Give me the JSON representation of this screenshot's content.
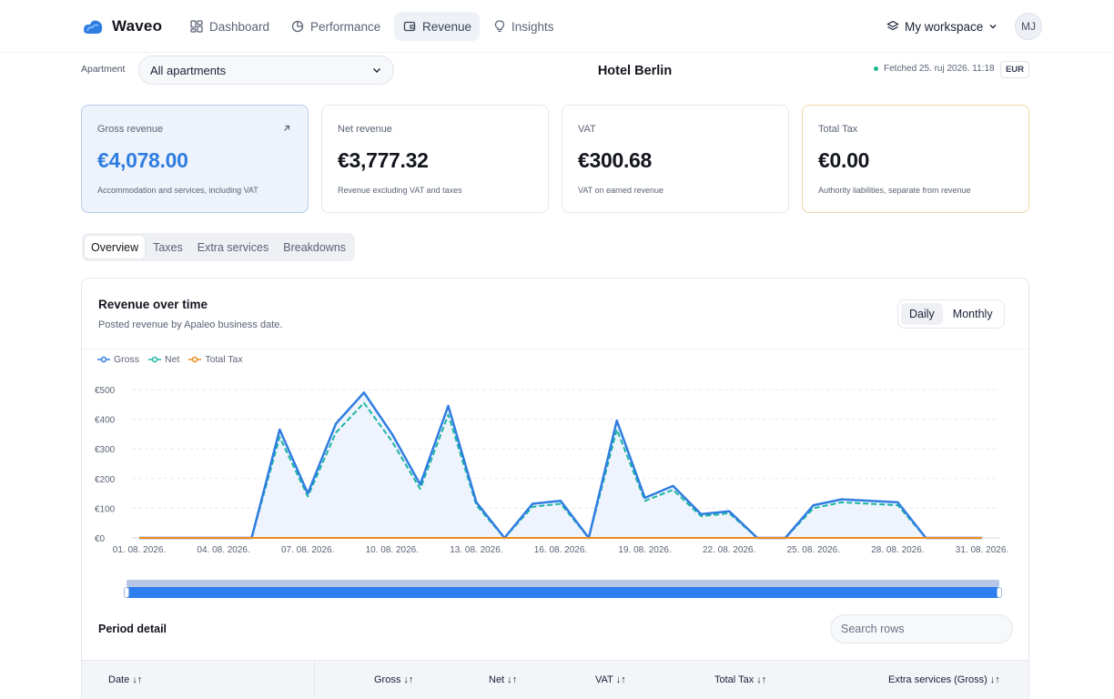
{
  "app": {
    "name": "Waveo"
  },
  "nav": {
    "items": [
      {
        "label": "Dashboard",
        "icon": "dashboard-icon"
      },
      {
        "label": "Performance",
        "icon": "pie-chart-icon"
      },
      {
        "label": "Revenue",
        "icon": "wallet-icon",
        "active": true
      },
      {
        "label": "Insights",
        "icon": "lightbulb-icon"
      }
    ],
    "workspace": "My workspace",
    "avatar_initials": "MJ"
  },
  "filters": {
    "apartment_label": "Apartment",
    "apartment_value": "All apartments",
    "hotel_title": "Hotel Berlin",
    "fetched": "Fetched 25. ruj 2026. 11:18",
    "currency": "EUR"
  },
  "kpis": [
    {
      "label": "Gross revenue",
      "value": "€4,078.00",
      "sub": "Accommodation and services, including VAT"
    },
    {
      "label": "Net revenue",
      "value": "€3,777.32",
      "sub": "Revenue excluding VAT and taxes"
    },
    {
      "label": "VAT",
      "value": "€300.68",
      "sub": "VAT on earned revenue"
    },
    {
      "label": "Total Tax",
      "value": "€0.00",
      "sub": "Authority liabilities, separate from revenue"
    }
  ],
  "tabs": [
    "Overview",
    "Taxes",
    "Extra services",
    "Breakdowns"
  ],
  "panel": {
    "title": "Revenue over time",
    "subtitle": "Posted revenue by Apaleo business date.",
    "toggle": [
      "Daily",
      "Monthly"
    ]
  },
  "colors": {
    "gross": "#2f7de1",
    "net": "#1cb5a3",
    "tax": "#ef8a1f",
    "accent": "#2d7ef0"
  },
  "chart_data": {
    "type": "line",
    "x": [
      "01. 08. 2026.",
      "02. 08. 2026.",
      "03. 08. 2026.",
      "04. 08. 2026.",
      "05. 08. 2026.",
      "06. 08. 2026.",
      "07. 08. 2026.",
      "08. 08. 2026.",
      "09. 08. 2026.",
      "10. 08. 2026.",
      "11. 08. 2026.",
      "12. 08. 2026.",
      "13. 08. 2026.",
      "14. 08. 2026.",
      "15. 08. 2026.",
      "16. 08. 2026.",
      "17. 08. 2026.",
      "18. 08. 2026.",
      "19. 08. 2026.",
      "20. 08. 2026.",
      "21. 08. 2026.",
      "22. 08. 2026.",
      "23. 08. 2026.",
      "24. 08. 2026.",
      "25. 08. 2026.",
      "26. 08. 2026.",
      "27. 08. 2026.",
      "28. 08. 2026.",
      "29. 08. 2026.",
      "30. 08. 2026.",
      "31. 08. 2026."
    ],
    "tick_labels": [
      "01. 08. 2026.",
      "04. 08. 2026.",
      "07. 08. 2026.",
      "10. 08. 2026.",
      "13. 08. 2026.",
      "16. 08. 2026.",
      "19. 08. 2026.",
      "22. 08. 2026.",
      "25. 08. 2026.",
      "28. 08. 2026.",
      "31. 08. 2026."
    ],
    "y_tick_labels": [
      "€0",
      "€100",
      "€200",
      "€300",
      "€400",
      "€500"
    ],
    "ylim": [
      0,
      500
    ],
    "legend": "top-left",
    "grid": true,
    "series": [
      {
        "name": "Gross",
        "values": [
          0,
          0,
          0,
          0,
          0,
          365,
          150,
          385,
          490,
          350,
          180,
          445,
          120,
          0,
          115,
          125,
          0,
          395,
          135,
          175,
          80,
          90,
          0,
          0,
          110,
          130,
          125,
          120,
          0,
          0,
          0
        ]
      },
      {
        "name": "Net",
        "values": [
          0,
          0,
          0,
          0,
          0,
          340,
          140,
          355,
          455,
          325,
          165,
          415,
          110,
          0,
          105,
          115,
          0,
          365,
          125,
          162,
          73,
          83,
          0,
          0,
          100,
          120,
          115,
          110,
          0,
          0,
          0
        ]
      },
      {
        "name": "Total Tax",
        "values": [
          0,
          0,
          0,
          0,
          0,
          0,
          0,
          0,
          0,
          0,
          0,
          0,
          0,
          0,
          0,
          0,
          0,
          0,
          0,
          0,
          0,
          0,
          0,
          0,
          0,
          0,
          0,
          0,
          0,
          0,
          0
        ]
      }
    ]
  },
  "period_detail": {
    "title": "Period detail",
    "search_placeholder": "Search rows",
    "columns": [
      "Date",
      "Gross",
      "Net",
      "VAT",
      "Total Tax",
      "Extra services (Gross)"
    ]
  }
}
